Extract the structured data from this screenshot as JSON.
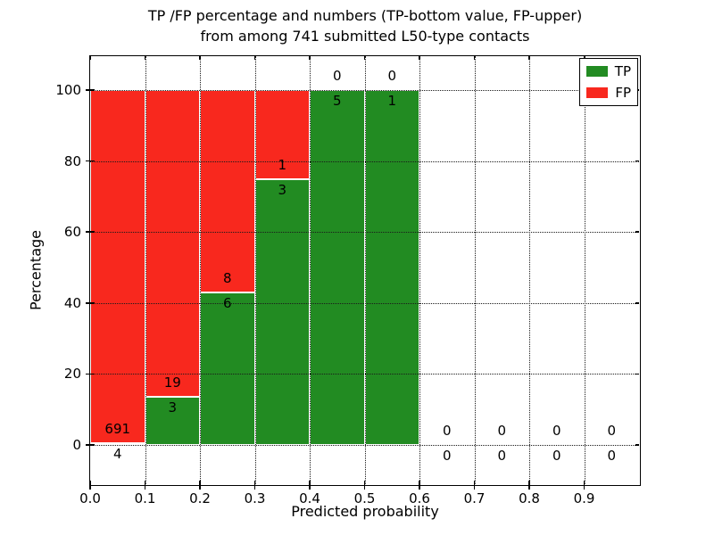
{
  "chart_data": {
    "type": "bar",
    "stacked": true,
    "title_line1": "TP /FP percentage and numbers (TP-bottom value, FP-upper)",
    "title_line2": "from among 741 submitted L50-type contacts",
    "xlabel": "Predicted probability",
    "ylabel": "Percentage",
    "total_contacts": 741,
    "grid": "dotted",
    "xlim": [
      0.0,
      1.0
    ],
    "ylim": [
      -12,
      110
    ],
    "x_ticks": {
      "values": [
        0.0,
        0.1,
        0.2,
        0.3,
        0.4,
        0.5,
        0.6,
        0.7,
        0.8,
        0.9
      ],
      "labels": [
        "0.0",
        "0.1",
        "0.2",
        "0.3",
        "0.4",
        "0.5",
        "0.6",
        "0.7",
        "0.8",
        "0.9"
      ]
    },
    "y_ticks": {
      "values": [
        0,
        20,
        40,
        60,
        80,
        100
      ],
      "labels": [
        "0",
        "20",
        "40",
        "60",
        "80",
        "100"
      ]
    },
    "colors": {
      "tp": "#228b22",
      "fp": "#f8281e"
    },
    "legend": {
      "position": "upper right",
      "items": [
        {
          "label": "TP",
          "color": "#228b22"
        },
        {
          "label": "FP",
          "color": "#f8281e"
        }
      ]
    },
    "bins": [
      {
        "range": "0.0-0.1",
        "tp": 4,
        "fp": 691,
        "tp_pct": 0.58,
        "fp_pct": 99.42
      },
      {
        "range": "0.1-0.2",
        "tp": 3,
        "fp": 19,
        "tp_pct": 13.64,
        "fp_pct": 86.36
      },
      {
        "range": "0.2-0.3",
        "tp": 6,
        "fp": 8,
        "tp_pct": 42.86,
        "fp_pct": 57.14
      },
      {
        "range": "0.3-0.4",
        "tp": 3,
        "fp": 1,
        "tp_pct": 75.0,
        "fp_pct": 25.0
      },
      {
        "range": "0.4-0.5",
        "tp": 5,
        "fp": 0,
        "tp_pct": 100.0,
        "fp_pct": 0.0
      },
      {
        "range": "0.5-0.6",
        "tp": 1,
        "fp": 0,
        "tp_pct": 100.0,
        "fp_pct": 0.0
      },
      {
        "range": "0.6-0.7",
        "tp": 0,
        "fp": 0,
        "tp_pct": 0.0,
        "fp_pct": 0.0
      },
      {
        "range": "0.7-0.8",
        "tp": 0,
        "fp": 0,
        "tp_pct": 0.0,
        "fp_pct": 0.0
      },
      {
        "range": "0.8-0.9",
        "tp": 0,
        "fp": 0,
        "tp_pct": 0.0,
        "fp_pct": 0.0
      },
      {
        "range": "0.9-1.0",
        "tp": 0,
        "fp": 0,
        "tp_pct": 0.0,
        "fp_pct": 0.0
      }
    ]
  }
}
